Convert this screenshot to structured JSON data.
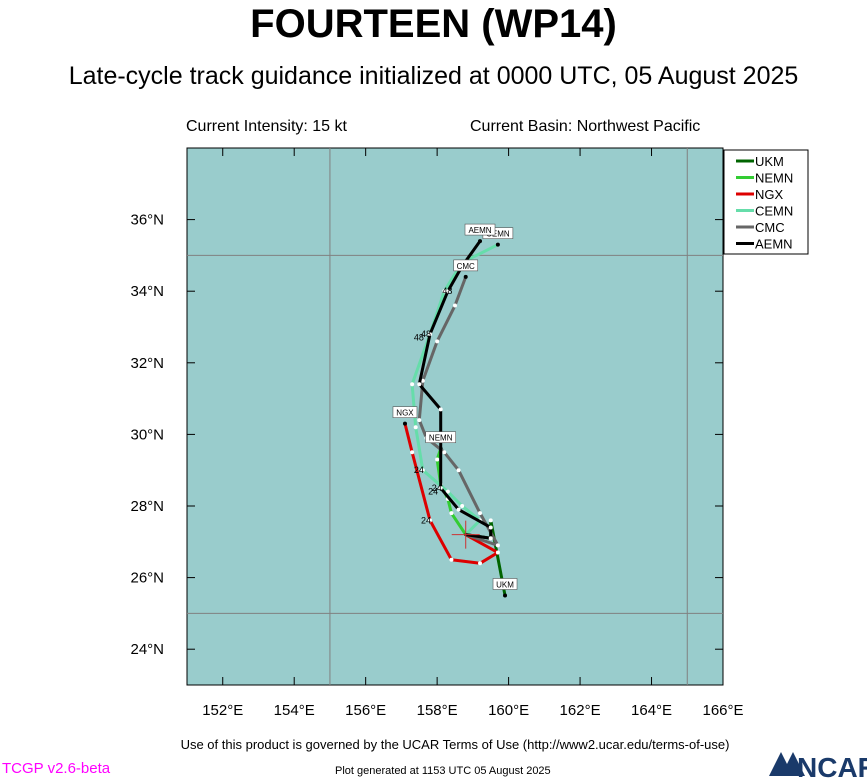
{
  "header": {
    "title": "FOURTEEN (WP14)",
    "subtitle": "Late-cycle track guidance initialized at 0000 UTC, 05 August 2025",
    "current_intensity": "Current Intensity: 15 kt",
    "current_basin": "Current Basin: Northwest Pacific"
  },
  "footer": {
    "terms": "Use of this product is governed by the UCAR Terms of Use (http://www2.ucar.edu/terms-of-use)",
    "version": "TCGP v2.6-beta",
    "generated": "Plot generated at 1153 UTC   05 August 2025",
    "logo_text": "NCAR"
  },
  "colors": {
    "ocean": "#99cccc",
    "grid": "#808080",
    "initial_marker": "#cc3333"
  },
  "chart_data": {
    "type": "line",
    "xlim": [
      151,
      166
    ],
    "ylim": [
      23,
      38
    ],
    "x_ticks": [
      152,
      154,
      156,
      158,
      160,
      162,
      164,
      166
    ],
    "x_tick_labels": [
      "152°E",
      "154°E",
      "156°E",
      "158°E",
      "160°E",
      "162°E",
      "164°E",
      "166°E"
    ],
    "y_ticks": [
      24,
      26,
      28,
      30,
      32,
      34,
      36
    ],
    "y_tick_labels": [
      "24°N",
      "26°N",
      "28°N",
      "30°N",
      "32°N",
      "34°N",
      "36°N"
    ],
    "grid_lon": [
      155,
      165
    ],
    "grid_lat": [
      25,
      35
    ],
    "grid": true,
    "legend_position": "top-right",
    "initial_position": [
      158.8,
      27.2
    ],
    "series": [
      {
        "name": "UKM",
        "color": "#006400",
        "points": [
          [
            158.8,
            27.2
          ],
          [
            159.5,
            27.1
          ],
          [
            159.5,
            27.6
          ],
          [
            159.9,
            25.5
          ]
        ],
        "end_label": "UKM",
        "end_label_at": [
          159.9,
          25.5
        ],
        "hour_labels": []
      },
      {
        "name": "NEMN",
        "color": "#33cc33",
        "points": [
          [
            158.8,
            27.2
          ],
          [
            158.4,
            27.8
          ],
          [
            158.3,
            28.2
          ],
          [
            158.1,
            28.6
          ],
          [
            158.0,
            29.3
          ],
          [
            158.1,
            29.6
          ]
        ],
        "end_label": "NEMN",
        "end_label_at": [
          158.1,
          29.6
        ],
        "hour_labels": [
          {
            "text": "24",
            "at": [
              158.0,
              28.4
            ]
          }
        ]
      },
      {
        "name": "NGX",
        "color": "#dd0000",
        "points": [
          [
            158.8,
            27.2
          ],
          [
            159.7,
            26.7
          ],
          [
            159.2,
            26.4
          ],
          [
            158.4,
            26.5
          ],
          [
            157.8,
            27.6
          ],
          [
            157.3,
            29.5
          ],
          [
            157.1,
            30.3
          ]
        ],
        "end_label": "NGX",
        "end_label_at": [
          157.1,
          30.3
        ],
        "hour_labels": [
          {
            "text": "24",
            "at": [
              157.8,
              27.6
            ]
          }
        ]
      },
      {
        "name": "CEMN",
        "color": "#66ddaa",
        "points": [
          [
            158.8,
            27.2
          ],
          [
            159.2,
            27.6
          ],
          [
            158.7,
            28.0
          ],
          [
            158.3,
            28.4
          ],
          [
            157.6,
            29.0
          ],
          [
            157.4,
            30.2
          ],
          [
            157.3,
            31.4
          ],
          [
            157.8,
            32.8
          ],
          [
            158.2,
            34.0
          ],
          [
            158.7,
            34.8
          ],
          [
            159.7,
            35.3
          ]
        ],
        "end_label": "CEMN",
        "end_label_at": [
          159.7,
          35.3
        ],
        "hour_labels": [
          {
            "text": "24",
            "at": [
              157.6,
              29.0
            ]
          },
          {
            "text": "48",
            "at": [
              157.6,
              32.7
            ]
          }
        ]
      },
      {
        "name": "CMC",
        "color": "#666666",
        "points": [
          [
            158.8,
            27.2
          ],
          [
            159.7,
            26.9
          ],
          [
            159.2,
            27.8
          ],
          [
            158.6,
            29.0
          ],
          [
            158.2,
            29.5
          ],
          [
            157.7,
            29.9
          ],
          [
            157.5,
            30.4
          ],
          [
            157.6,
            31.5
          ],
          [
            158.0,
            32.6
          ],
          [
            158.5,
            33.6
          ],
          [
            158.8,
            34.4
          ]
        ],
        "end_label": "CMC",
        "end_label_at": [
          158.8,
          34.4
        ],
        "hour_labels": [
          {
            "text": "48",
            "at": [
              158.4,
              34.0
            ]
          }
        ]
      },
      {
        "name": "AEMN",
        "color": "#000000",
        "points": [
          [
            158.8,
            27.2
          ],
          [
            159.5,
            27.1
          ],
          [
            159.5,
            27.4
          ],
          [
            158.6,
            27.9
          ],
          [
            158.1,
            28.5
          ],
          [
            158.1,
            30.7
          ],
          [
            157.5,
            31.4
          ],
          [
            157.8,
            32.8
          ],
          [
            158.3,
            34.0
          ],
          [
            158.7,
            34.7
          ],
          [
            159.2,
            35.4
          ]
        ],
        "end_label": "AEMN",
        "end_label_at": [
          159.2,
          35.4
        ],
        "hour_labels": [
          {
            "text": "24",
            "at": [
              158.1,
              28.5
            ]
          },
          {
            "text": "48",
            "at": [
              157.8,
              32.8
            ]
          }
        ]
      }
    ]
  }
}
